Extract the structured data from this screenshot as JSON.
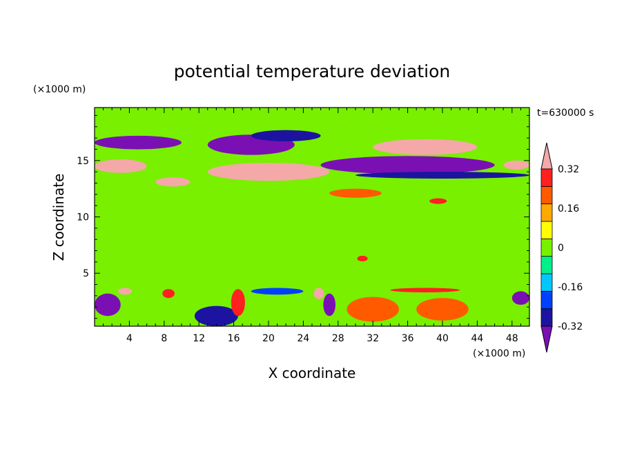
{
  "chart_data": {
    "type": "heatmap",
    "title": "potential temperature deviation",
    "xlabel": "X coordinate",
    "ylabel": "Z coordinate",
    "x_unit": "(×1000 m)",
    "y_unit": "(×1000 m)",
    "time_label": "t=630000 s",
    "xlim": [
      0,
      50
    ],
    "ylim": [
      0.3,
      19.7
    ],
    "xticks": [
      4,
      8,
      12,
      16,
      20,
      24,
      28,
      32,
      36,
      40,
      44,
      48
    ],
    "yticks": [
      5,
      10,
      15
    ],
    "colorbar": {
      "levels": [
        -0.4,
        -0.32,
        -0.24,
        -0.16,
        -0.08,
        0,
        0.08,
        0.16,
        0.24,
        0.32,
        0.4
      ],
      "labels": [
        "0.32",
        "0.16",
        "0",
        "-0.16",
        "-0.32"
      ],
      "label_values": [
        0.32,
        0.16,
        0,
        -0.16,
        -0.32
      ],
      "colors": [
        "#7a10b4",
        "#1c14a0",
        "#0040ff",
        "#00c8ff",
        "#00f08c",
        "#78f000",
        "#ffff00",
        "#ffa800",
        "#ff5a00",
        "#ff2020",
        "#f5a8a8"
      ]
    },
    "series": [
      {
        "regions": [
          {
            "value": -0.4,
            "cx": 5,
            "cy": 16.6,
            "rx": 5,
            "ry": 0.6
          },
          {
            "value": -0.4,
            "cx": 18,
            "cy": 16.4,
            "rx": 5,
            "ry": 0.9
          },
          {
            "value": -0.4,
            "cx": 36,
            "cy": 14.6,
            "rx": 10,
            "ry": 0.8
          },
          {
            "value": -0.32,
            "cx": 40,
            "cy": 13.7,
            "rx": 10,
            "ry": 0.3
          },
          {
            "value": -0.32,
            "cx": 22,
            "cy": 17.2,
            "rx": 4,
            "ry": 0.5
          },
          {
            "value": 0.4,
            "cx": 3,
            "cy": 14.5,
            "rx": 3,
            "ry": 0.6
          },
          {
            "value": 0.4,
            "cx": 20,
            "cy": 14.0,
            "rx": 7,
            "ry": 0.8
          },
          {
            "value": 0.4,
            "cx": 38,
            "cy": 16.2,
            "rx": 6,
            "ry": 0.7
          },
          {
            "value": 0.4,
            "cx": 9,
            "cy": 13.1,
            "rx": 2,
            "ry": 0.4
          },
          {
            "value": 0.4,
            "cx": 48.5,
            "cy": 14.6,
            "rx": 1.5,
            "ry": 0.4
          },
          {
            "value": 0.24,
            "cx": 30,
            "cy": 12.1,
            "rx": 3,
            "ry": 0.4
          },
          {
            "value": 0.32,
            "cx": 39.5,
            "cy": 11.4,
            "rx": 1,
            "ry": 0.25
          },
          {
            "value": 0.32,
            "cx": 30.8,
            "cy": 6.3,
            "rx": 0.6,
            "ry": 0.25
          },
          {
            "value": -0.4,
            "cx": 1.5,
            "cy": 2.2,
            "rx": 1.5,
            "ry": 1.0
          },
          {
            "value": 0.4,
            "cx": 3.5,
            "cy": 3.4,
            "rx": 0.8,
            "ry": 0.3
          },
          {
            "value": -0.32,
            "cx": 14,
            "cy": 1.2,
            "rx": 2.5,
            "ry": 0.9
          },
          {
            "value": 0.32,
            "cx": 16.5,
            "cy": 2.4,
            "rx": 0.8,
            "ry": 1.2
          },
          {
            "value": 0.4,
            "cx": 25.8,
            "cy": 3.2,
            "rx": 0.6,
            "ry": 0.5
          },
          {
            "value": -0.4,
            "cx": 27,
            "cy": 2.2,
            "rx": 0.7,
            "ry": 1.0
          },
          {
            "value": 0.24,
            "cx": 32,
            "cy": 1.8,
            "rx": 3,
            "ry": 1.1
          },
          {
            "value": 0.24,
            "cx": 40,
            "cy": 1.8,
            "rx": 3,
            "ry": 1.0
          },
          {
            "value": -0.4,
            "cx": 49,
            "cy": 2.8,
            "rx": 1,
            "ry": 0.6
          },
          {
            "value": 0.32,
            "cx": 38,
            "cy": 3.5,
            "rx": 4,
            "ry": 0.2
          },
          {
            "value": 0.32,
            "cx": 8.5,
            "cy": 3.2,
            "rx": 0.7,
            "ry": 0.4
          },
          {
            "value": -0.24,
            "cx": 21,
            "cy": 3.4,
            "rx": 3,
            "ry": 0.3
          }
        ]
      }
    ],
    "background_value": 0.02
  }
}
